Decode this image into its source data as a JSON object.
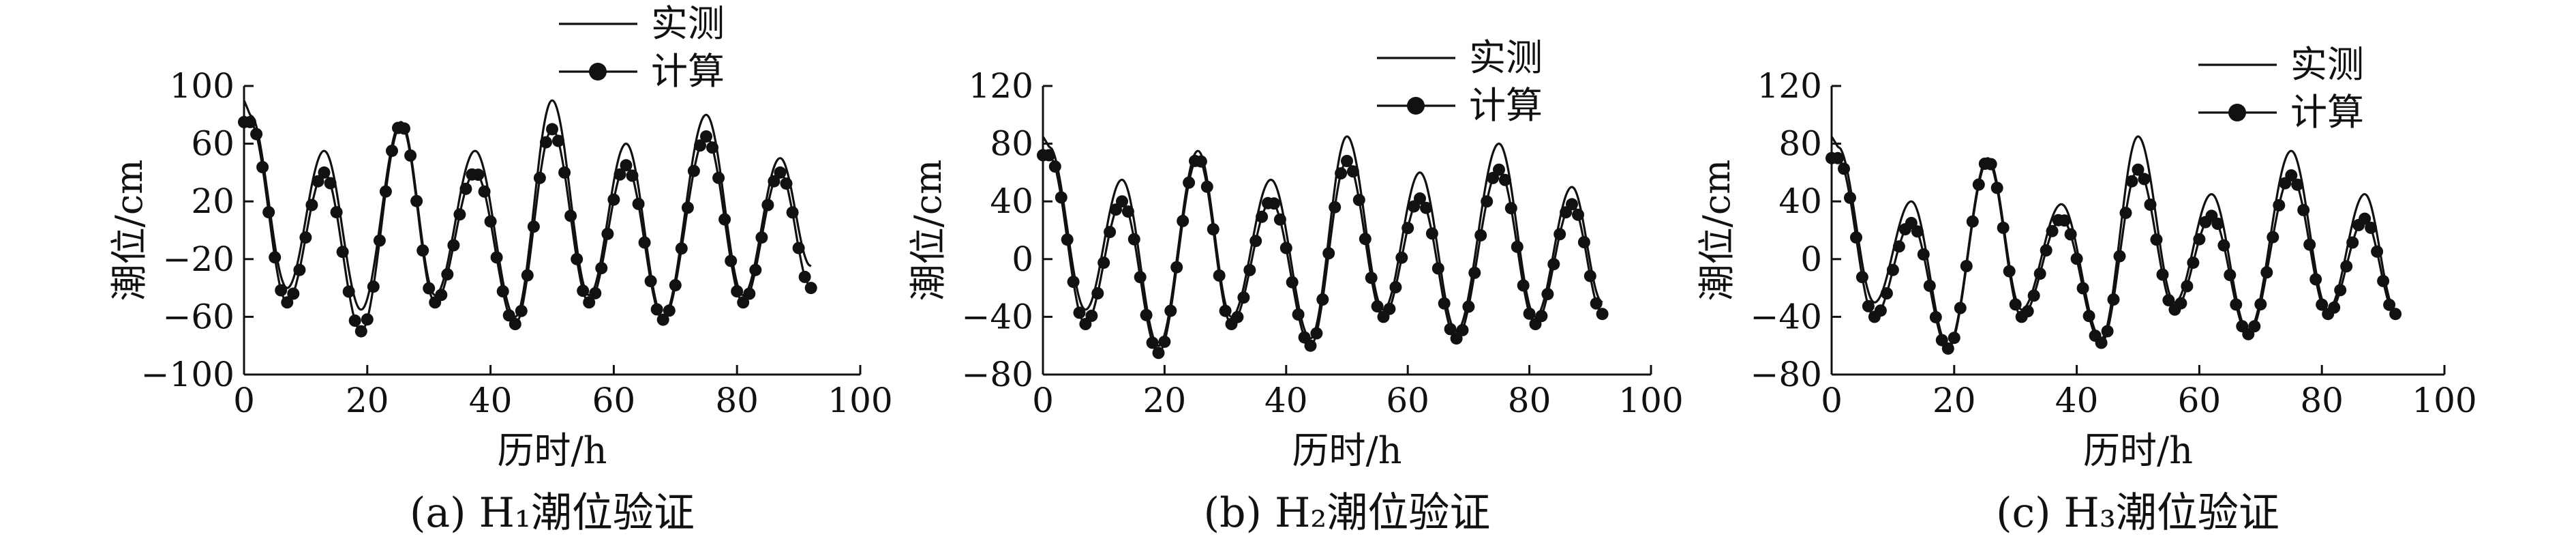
{
  "chart_data": [
    {
      "type": "line",
      "caption": "(a) H₁潮位验证",
      "xlabel": "历时/h",
      "ylabel": "潮位/cm",
      "xlim": [
        0,
        100
      ],
      "ylim": [
        -100,
        100
      ],
      "xticks": [
        "0",
        "20",
        "40",
        "60",
        "80",
        "100"
      ],
      "yticks": [
        "−100",
        "−60",
        "−20",
        "20",
        "60",
        "100"
      ],
      "legend": {
        "position": "top",
        "entries": [
          "实测",
          "计算"
        ]
      },
      "series": [
        {
          "name": "实测",
          "style": "solid-line",
          "x": [
            0,
            1,
            7,
            13,
            19,
            25.5,
            31,
            37.5,
            44,
            50,
            56,
            62,
            68,
            75,
            81,
            87,
            92
          ],
          "y": [
            90,
            80,
            -40,
            55,
            -55,
            75,
            -45,
            55,
            -60,
            90,
            -45,
            60,
            -60,
            80,
            -45,
            50,
            -25
          ]
        },
        {
          "name": "计算",
          "style": "line-with-markers",
          "x": [
            0,
            1,
            7,
            13,
            19,
            25.5,
            31,
            37.5,
            44,
            50,
            56,
            62,
            68,
            75,
            81,
            87,
            92
          ],
          "y": [
            75,
            75,
            -50,
            40,
            -70,
            73,
            -50,
            40,
            -65,
            70,
            -50,
            45,
            -62,
            65,
            -50,
            40,
            -40
          ]
        }
      ]
    },
    {
      "type": "line",
      "caption": "(b) H₂潮位验证",
      "xlabel": "历时/h",
      "ylabel": "潮位/cm",
      "xlim": [
        0,
        100
      ],
      "ylim": [
        -80,
        120
      ],
      "xticks": [
        "0",
        "20",
        "40",
        "60",
        "80",
        "100"
      ],
      "yticks": [
        "−80",
        "−40",
        "0",
        "40",
        "80",
        "120"
      ],
      "legend": {
        "position": "top-right",
        "entries": [
          "实测",
          "计算"
        ]
      },
      "series": [
        {
          "name": "实测",
          "style": "solid-line",
          "x": [
            0,
            1,
            7,
            13,
            19,
            25.5,
            31,
            37.5,
            44,
            50,
            56,
            62,
            68,
            75,
            81,
            87,
            92
          ],
          "y": [
            85,
            78,
            -35,
            55,
            -60,
            75,
            -40,
            55,
            -55,
            85,
            -35,
            60,
            -50,
            80,
            -40,
            50,
            -30
          ]
        },
        {
          "name": "计算",
          "style": "line-with-markers",
          "x": [
            0,
            1,
            7,
            13,
            19,
            25.5,
            31,
            37.5,
            44,
            50,
            56,
            62,
            68,
            75,
            81,
            87,
            92
          ],
          "y": [
            72,
            72,
            -45,
            40,
            -65,
            70,
            -45,
            40,
            -60,
            68,
            -40,
            42,
            -55,
            62,
            -45,
            38,
            -38
          ]
        }
      ]
    },
    {
      "type": "line",
      "caption": "(c) H₃潮位验证",
      "xlabel": "历时/h",
      "ylabel": "潮位/cm",
      "xlim": [
        0,
        100
      ],
      "ylim": [
        -80,
        120
      ],
      "xticks": [
        "0",
        "20",
        "40",
        "60",
        "80",
        "100"
      ],
      "yticks": [
        "−80",
        "−40",
        "0",
        "40",
        "80",
        "120"
      ],
      "legend": {
        "position": "top-right",
        "entries": [
          "实测",
          "计算"
        ]
      },
      "series": [
        {
          "name": "实测",
          "style": "solid-line",
          "x": [
            0,
            1,
            7,
            13,
            19,
            25.5,
            31,
            37.5,
            44,
            50,
            56,
            62,
            68,
            75,
            81,
            87,
            92
          ],
          "y": [
            85,
            78,
            -30,
            40,
            -60,
            70,
            -35,
            38,
            -55,
            85,
            -30,
            45,
            -50,
            75,
            -35,
            45,
            -35
          ]
        },
        {
          "name": "计算",
          "style": "line-with-markers",
          "x": [
            0,
            1,
            7,
            13,
            19,
            25.5,
            31,
            37.5,
            44,
            50,
            56,
            62,
            68,
            75,
            81,
            87,
            92
          ],
          "y": [
            70,
            70,
            -40,
            25,
            -62,
            68,
            -40,
            28,
            -58,
            62,
            -35,
            30,
            -52,
            58,
            -38,
            28,
            -38
          ]
        }
      ]
    }
  ]
}
